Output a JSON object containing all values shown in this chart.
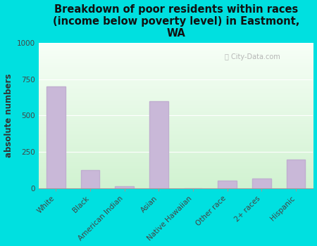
{
  "title": "Breakdown of poor residents within races\n(income below poverty level) in Eastmont,\nWA",
  "ylabel": "absolute numbers",
  "categories": [
    "White",
    "Black",
    "American Indian",
    "Asian",
    "Native Hawaiian",
    "Other race",
    "2+ races",
    "Hispanic"
  ],
  "values": [
    700,
    125,
    15,
    600,
    0,
    55,
    70,
    200
  ],
  "bar_color": "#c9b8d8",
  "bar_edgecolor": "#c0aed0",
  "ylim": [
    0,
    1000
  ],
  "yticks": [
    0,
    250,
    500,
    750,
    1000
  ],
  "background_color": "#00e0e0",
  "title_fontsize": 10.5,
  "ylabel_fontsize": 8.5,
  "tick_fontsize": 7.5,
  "watermark": "City-Data.com"
}
